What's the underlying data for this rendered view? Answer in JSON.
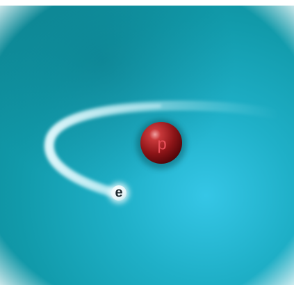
{
  "labels": {
    "proton": "p",
    "electron": "e"
  }
}
